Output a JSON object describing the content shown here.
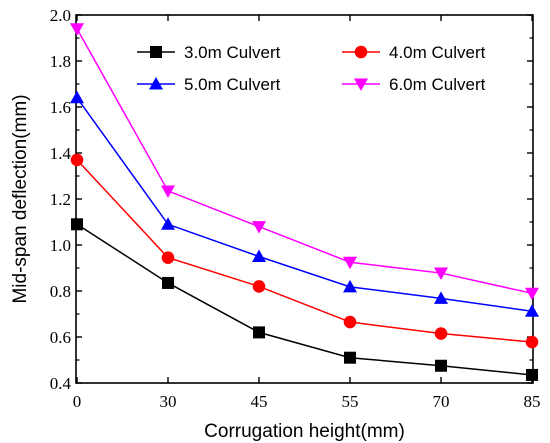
{
  "chart_data": {
    "type": "line",
    "xlabel": "Corrugation height(mm)",
    "ylabel": "Mid-span deflection(mm)",
    "categories": [
      "0",
      "30",
      "45",
      "55",
      "70",
      "85"
    ],
    "ylim": [
      0.4,
      2.0
    ],
    "yticks": [
      "0.4",
      "0.6",
      "0.8",
      "1.0",
      "1.2",
      "1.4",
      "1.6",
      "1.8",
      "2.0"
    ],
    "grid": false,
    "legend_position": "top-right",
    "series": [
      {
        "name": "3.0m Culvert",
        "color": "#000000",
        "marker": "square",
        "values": [
          1.09,
          0.835,
          0.62,
          0.51,
          0.475,
          0.435
        ]
      },
      {
        "name": "4.0m Culvert",
        "color": "#ff0000",
        "marker": "circle",
        "values": [
          1.37,
          0.945,
          0.82,
          0.665,
          0.615,
          0.578
        ]
      },
      {
        "name": "5.0m Culvert",
        "color": "#0000ff",
        "marker": "triangle-up",
        "values": [
          1.64,
          1.09,
          0.95,
          0.818,
          0.768,
          0.712
        ]
      },
      {
        "name": "6.0m Culvert",
        "color": "#ff00ff",
        "marker": "triangle-down",
        "values": [
          1.94,
          1.235,
          1.08,
          0.925,
          0.878,
          0.79
        ]
      }
    ]
  }
}
